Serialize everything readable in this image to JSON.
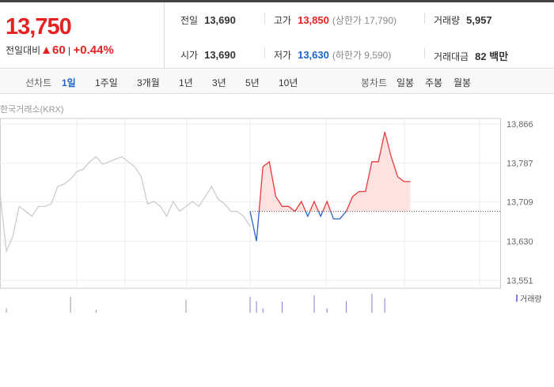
{
  "quote": {
    "price": "13,750",
    "change_label": "전일대비",
    "change": "▲60",
    "change_pct": "+0.44%"
  },
  "stats": [
    [
      {
        "label": "전일",
        "value": "13,690"
      },
      {
        "label": "고가",
        "value": "13,850",
        "note": "(상한가 17,790)"
      },
      {
        "label": "거래량",
        "value": "5,957"
      }
    ],
    [
      {
        "label": "시가",
        "value": "13,690"
      },
      {
        "label": "저가",
        "value": "13,630",
        "note": "(하한가 9,590)"
      },
      {
        "label": "거래대금",
        "value": "82 백만"
      }
    ]
  ],
  "tabs": {
    "line_label": "선차트",
    "line": [
      "1일",
      "1주일",
      "3개월",
      "1년",
      "3년",
      "5년",
      "10년"
    ],
    "candle_label": "봉차트",
    "candle": [
      "일봉",
      "주봉",
      "월봉"
    ]
  },
  "chart_data": {
    "type": "line",
    "source": "한국거래소(KRX)",
    "reference": 13690,
    "ylim": [
      13551,
      13866
    ],
    "yticks": [
      {
        "value": 13866,
        "label": "13,866"
      },
      {
        "value": 13787,
        "label": "13,787"
      },
      {
        "value": 13709,
        "label": "13,709"
      },
      {
        "value": 13630,
        "label": "13,630"
      },
      {
        "value": 13551,
        "label": "13,551"
      }
    ],
    "series": [
      {
        "color": "#c8c8c8",
        "values": [
          13725,
          13610,
          13640,
          13700,
          13690,
          13680,
          13700,
          13700,
          13705,
          13740,
          13745,
          13755,
          13770,
          13775,
          13790,
          13800,
          13785,
          13790,
          13795,
          13800,
          13790,
          13780,
          13760,
          13705,
          13710,
          13700,
          13680,
          13710,
          13690,
          13700,
          13710,
          13700,
          13720,
          13740,
          13715,
          13705,
          13690,
          13690,
          13680,
          13660
        ],
        "volume": [
          0,
          60,
          0,
          0,
          0,
          0,
          0,
          0,
          0,
          0,
          0,
          220,
          0,
          0,
          0,
          40,
          0,
          0,
          0,
          0,
          0,
          0,
          0,
          0,
          0,
          0,
          0,
          0,
          0,
          180,
          0,
          0,
          0,
          0,
          0,
          0,
          0,
          0,
          0,
          0
        ]
      },
      {
        "color": "#e8393b",
        "color_below": "#2b64c5",
        "fill": "#fde2e2",
        "values": [
          13690,
          13630,
          13780,
          13790,
          13720,
          13700,
          13700,
          13690,
          13710,
          13680,
          13710,
          13680,
          13710,
          13675,
          13675,
          13690,
          13720,
          13730,
          13730,
          13790,
          13790,
          13850,
          13800,
          13760,
          13750,
          13750
        ],
        "volume": [
          220,
          160,
          60,
          0,
          0,
          150,
          0,
          0,
          0,
          0,
          240,
          0,
          60,
          0,
          0,
          160,
          0,
          0,
          0,
          260,
          0,
          200,
          0,
          0,
          0,
          0
        ]
      }
    ],
    "volume_legend": "거래량",
    "volume_color": "#8a79d6"
  }
}
